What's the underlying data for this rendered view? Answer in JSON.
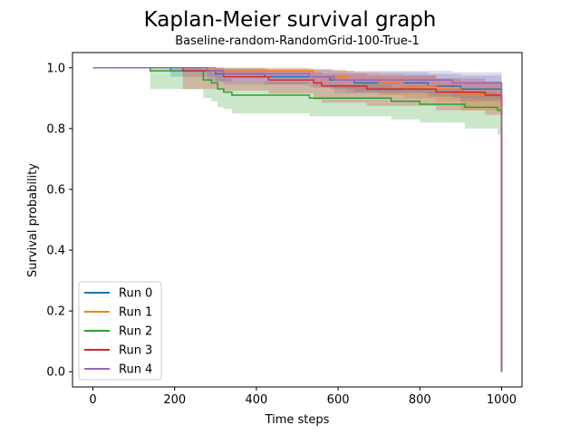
{
  "chart_data": {
    "type": "line",
    "title": "Kaplan-Meier survival graph",
    "subtitle": "Baseline-random-RandomGrid-100-True-1",
    "xlabel": "Time steps",
    "ylabel": "Survival probability",
    "xlim": [
      -50,
      1050
    ],
    "ylim": [
      -0.05,
      1.05
    ],
    "xticks": [
      0,
      200,
      400,
      600,
      800,
      1000
    ],
    "xtick_labels": [
      "0",
      "200",
      "400",
      "600",
      "800",
      "1000"
    ],
    "yticks": [
      0.0,
      0.2,
      0.4,
      0.6,
      0.8,
      1.0
    ],
    "ytick_labels": [
      "0.0",
      "0.2",
      "0.4",
      "0.6",
      "0.8",
      "1.0"
    ],
    "grid": false,
    "legend_position": "lower-left",
    "series": [
      {
        "name": "Run 0",
        "color": "#1f77b4",
        "points": [
          [
            0,
            1.0
          ],
          [
            190,
            1.0
          ],
          [
            190,
            0.99
          ],
          [
            300,
            0.99
          ],
          [
            300,
            0.98
          ],
          [
            420,
            0.98
          ],
          [
            420,
            0.97
          ],
          [
            580,
            0.97
          ],
          [
            580,
            0.96
          ],
          [
            640,
            0.96
          ],
          [
            640,
            0.95
          ],
          [
            820,
            0.95
          ],
          [
            820,
            0.94
          ],
          [
            900,
            0.94
          ],
          [
            900,
            0.93
          ],
          [
            1000,
            0.93
          ],
          [
            1000,
            0.0
          ]
        ],
        "ci_upper": [
          [
            0,
            1.0
          ],
          [
            190,
            1.0
          ],
          [
            300,
            1.0
          ],
          [
            420,
            0.995
          ],
          [
            580,
            0.99
          ],
          [
            640,
            0.985
          ],
          [
            820,
            0.98
          ],
          [
            900,
            0.975
          ],
          [
            1000,
            0.97
          ]
        ],
        "ci_lower": [
          [
            0,
            1.0
          ],
          [
            190,
            0.97
          ],
          [
            300,
            0.955
          ],
          [
            420,
            0.945
          ],
          [
            580,
            0.93
          ],
          [
            640,
            0.92
          ],
          [
            820,
            0.905
          ],
          [
            900,
            0.89
          ],
          [
            1000,
            0.875
          ]
        ]
      },
      {
        "name": "Run 1",
        "color": "#ff7f0e",
        "points": [
          [
            0,
            1.0
          ],
          [
            300,
            1.0
          ],
          [
            300,
            0.99
          ],
          [
            540,
            0.99
          ],
          [
            540,
            0.97
          ],
          [
            620,
            0.97
          ],
          [
            620,
            0.96
          ],
          [
            700,
            0.96
          ],
          [
            700,
            0.95
          ],
          [
            760,
            0.95
          ],
          [
            760,
            0.94
          ],
          [
            840,
            0.94
          ],
          [
            840,
            0.93
          ],
          [
            900,
            0.93
          ],
          [
            900,
            0.91
          ],
          [
            1000,
            0.91
          ],
          [
            1000,
            0.0
          ]
        ],
        "ci_upper": [
          [
            0,
            1.0
          ],
          [
            300,
            1.0
          ],
          [
            540,
            0.995
          ],
          [
            620,
            0.985
          ],
          [
            700,
            0.98
          ],
          [
            760,
            0.975
          ],
          [
            840,
            0.965
          ],
          [
            900,
            0.955
          ],
          [
            1000,
            0.95
          ]
        ],
        "ci_lower": [
          [
            0,
            1.0
          ],
          [
            300,
            0.97
          ],
          [
            540,
            0.935
          ],
          [
            620,
            0.92
          ],
          [
            700,
            0.91
          ],
          [
            760,
            0.9
          ],
          [
            840,
            0.89
          ],
          [
            900,
            0.86
          ],
          [
            1000,
            0.83
          ]
        ]
      },
      {
        "name": "Run 2",
        "color": "#2ca02c",
        "points": [
          [
            0,
            1.0
          ],
          [
            140,
            1.0
          ],
          [
            140,
            0.99
          ],
          [
            270,
            0.99
          ],
          [
            270,
            0.96
          ],
          [
            290,
            0.96
          ],
          [
            290,
            0.95
          ],
          [
            305,
            0.95
          ],
          [
            305,
            0.93
          ],
          [
            320,
            0.93
          ],
          [
            320,
            0.92
          ],
          [
            340,
            0.92
          ],
          [
            340,
            0.91
          ],
          [
            530,
            0.91
          ],
          [
            530,
            0.9
          ],
          [
            730,
            0.9
          ],
          [
            730,
            0.89
          ],
          [
            800,
            0.89
          ],
          [
            800,
            0.88
          ],
          [
            910,
            0.88
          ],
          [
            910,
            0.87
          ],
          [
            990,
            0.87
          ],
          [
            990,
            0.86
          ],
          [
            1000,
            0.86
          ],
          [
            1000,
            0.0
          ]
        ],
        "ci_upper": [
          [
            0,
            1.0
          ],
          [
            140,
            1.0
          ],
          [
            270,
            0.995
          ],
          [
            290,
            0.985
          ],
          [
            305,
            0.975
          ],
          [
            320,
            0.965
          ],
          [
            340,
            0.955
          ],
          [
            530,
            0.945
          ],
          [
            730,
            0.935
          ],
          [
            800,
            0.93
          ],
          [
            910,
            0.92
          ],
          [
            990,
            0.91
          ],
          [
            1000,
            0.91
          ]
        ],
        "ci_lower": [
          [
            0,
            1.0
          ],
          [
            140,
            0.93
          ],
          [
            270,
            0.9
          ],
          [
            290,
            0.89
          ],
          [
            305,
            0.87
          ],
          [
            320,
            0.865
          ],
          [
            340,
            0.85
          ],
          [
            530,
            0.84
          ],
          [
            730,
            0.83
          ],
          [
            800,
            0.82
          ],
          [
            910,
            0.8
          ],
          [
            990,
            0.78
          ],
          [
            1000,
            0.78
          ]
        ]
      },
      {
        "name": "Run 3",
        "color": "#d62728",
        "points": [
          [
            0,
            1.0
          ],
          [
            220,
            1.0
          ],
          [
            220,
            0.99
          ],
          [
            320,
            0.99
          ],
          [
            320,
            0.97
          ],
          [
            430,
            0.97
          ],
          [
            430,
            0.96
          ],
          [
            540,
            0.96
          ],
          [
            540,
            0.95
          ],
          [
            560,
            0.95
          ],
          [
            560,
            0.94
          ],
          [
            670,
            0.94
          ],
          [
            670,
            0.93
          ],
          [
            840,
            0.93
          ],
          [
            840,
            0.92
          ],
          [
            960,
            0.92
          ],
          [
            960,
            0.91
          ],
          [
            1000,
            0.91
          ],
          [
            1000,
            0.0
          ]
        ],
        "ci_upper": [
          [
            0,
            1.0
          ],
          [
            220,
            1.0
          ],
          [
            320,
            0.995
          ],
          [
            430,
            0.99
          ],
          [
            540,
            0.985
          ],
          [
            560,
            0.98
          ],
          [
            670,
            0.975
          ],
          [
            840,
            0.965
          ],
          [
            960,
            0.955
          ],
          [
            1000,
            0.955
          ]
        ],
        "ci_lower": [
          [
            0,
            1.0
          ],
          [
            220,
            0.93
          ],
          [
            320,
            0.925
          ],
          [
            430,
            0.915
          ],
          [
            540,
            0.895
          ],
          [
            560,
            0.885
          ],
          [
            670,
            0.875
          ],
          [
            840,
            0.86
          ],
          [
            960,
            0.845
          ],
          [
            1000,
            0.845
          ]
        ]
      },
      {
        "name": "Run 4",
        "color": "#9467bd",
        "points": [
          [
            0,
            1.0
          ],
          [
            280,
            1.0
          ],
          [
            280,
            0.99
          ],
          [
            320,
            0.99
          ],
          [
            320,
            0.98
          ],
          [
            530,
            0.98
          ],
          [
            530,
            0.97
          ],
          [
            590,
            0.97
          ],
          [
            590,
            0.96
          ],
          [
            880,
            0.96
          ],
          [
            880,
            0.95
          ],
          [
            1000,
            0.95
          ],
          [
            1000,
            0.0
          ]
        ],
        "ci_upper": [
          [
            0,
            1.0
          ],
          [
            280,
            1.0
          ],
          [
            320,
            0.998
          ],
          [
            530,
            0.995
          ],
          [
            590,
            0.99
          ],
          [
            880,
            0.985
          ],
          [
            1000,
            0.98
          ]
        ],
        "ci_lower": [
          [
            0,
            1.0
          ],
          [
            280,
            0.955
          ],
          [
            320,
            0.945
          ],
          [
            530,
            0.935
          ],
          [
            590,
            0.915
          ],
          [
            880,
            0.9
          ],
          [
            1000,
            0.895
          ]
        ]
      }
    ]
  }
}
